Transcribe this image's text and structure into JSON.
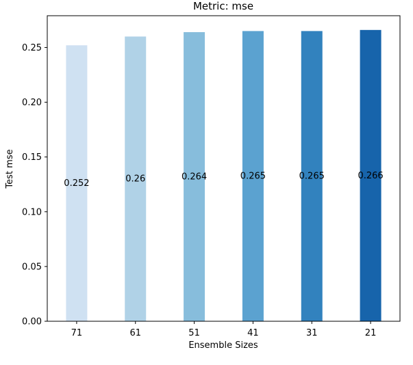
{
  "chart_data": {
    "type": "bar",
    "title": "Metric: mse",
    "xlabel": "Ensemble Sizes",
    "ylabel": "Test mse",
    "categories": [
      "71",
      "61",
      "51",
      "41",
      "31",
      "21"
    ],
    "values": [
      0.252,
      0.26,
      0.264,
      0.265,
      0.265,
      0.266
    ],
    "value_labels": [
      "0.252",
      "0.26",
      "0.264",
      "0.265",
      "0.265",
      "0.266"
    ],
    "ylim": [
      0,
      0.279
    ],
    "yticks": [
      0.0,
      0.05,
      0.1,
      0.15,
      0.2,
      0.25
    ],
    "ytick_labels": [
      "0.00",
      "0.05",
      "0.10",
      "0.15",
      "0.20",
      "0.25"
    ],
    "grid": false,
    "legend": "none",
    "colors": [
      "#cfe1f2",
      "#b0d2e7",
      "#87bddc",
      "#5ba2d0",
      "#3282be",
      "#1764ab"
    ]
  }
}
